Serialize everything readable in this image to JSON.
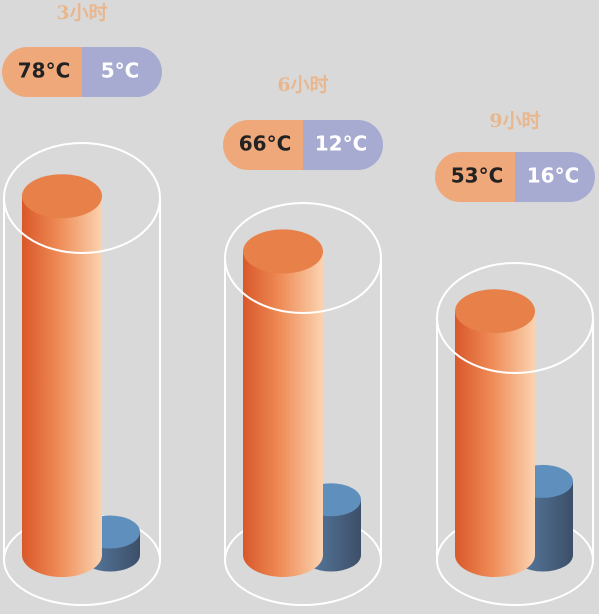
{
  "chart_data": {
    "type": "cylinder",
    "categories": [
      "3小时",
      "6小时",
      "9小时"
    ],
    "series": [
      {
        "color": "#e8743b",
        "values": [
          78,
          66,
          53
        ],
        "value_labels": [
          "78°C",
          "66°C",
          "53°C"
        ]
      },
      {
        "color": "#5b8bb5",
        "values": [
          5,
          12,
          16
        ],
        "value_labels": [
          "5°C",
          "12°C",
          "16°C"
        ]
      }
    ]
  }
}
